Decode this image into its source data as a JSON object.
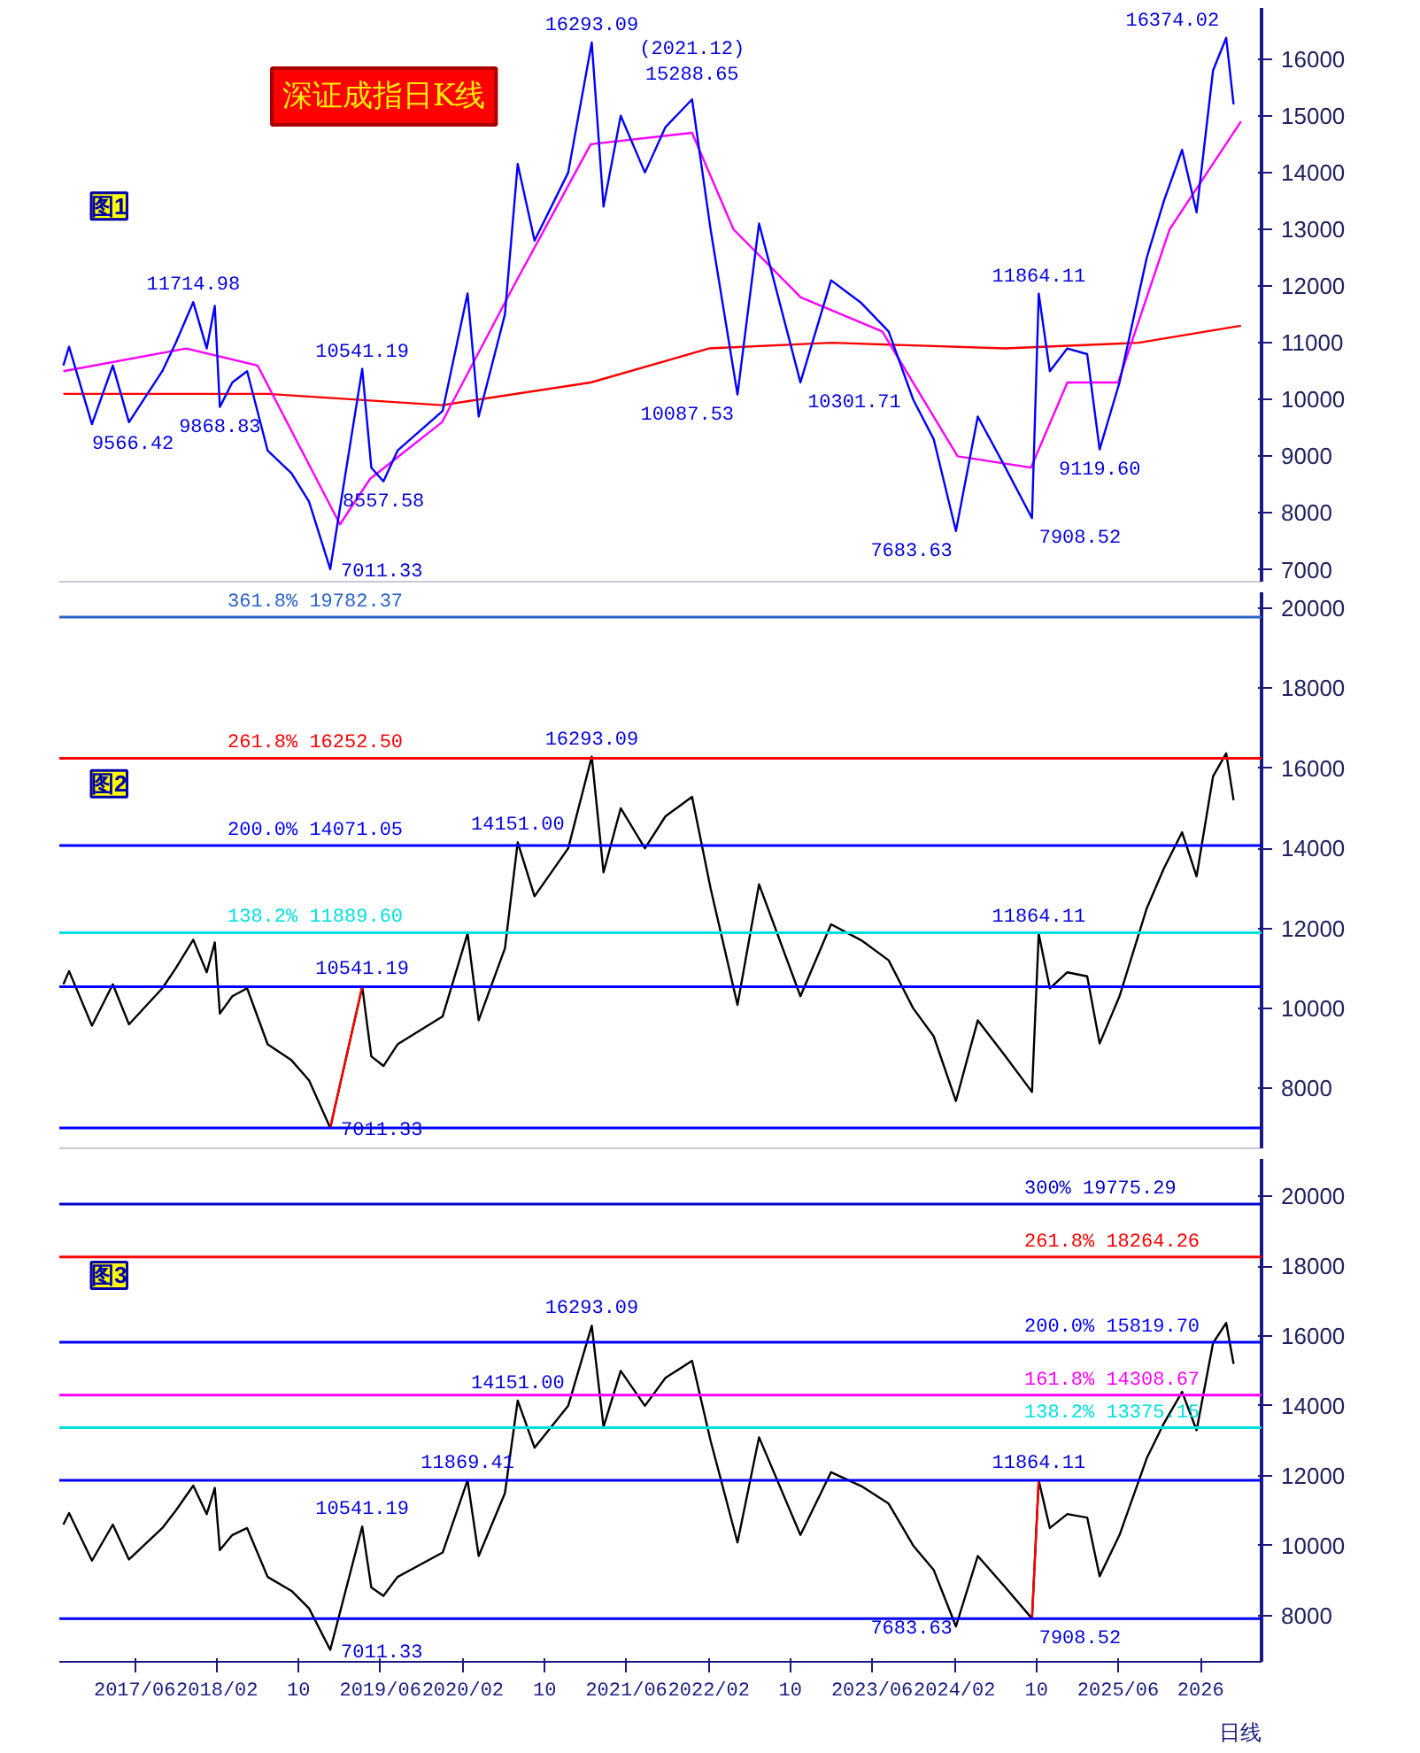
{
  "chart_data": [
    {
      "type": "line",
      "title": "深证成指日K线",
      "subtitle": "图1",
      "xlim": [
        "2016-10-20",
        "2026-08-01"
      ],
      "ylim": [
        6790,
        16900
      ],
      "yticks": [
        7000,
        8000,
        9000,
        10000,
        11000,
        12000,
        13000,
        14000,
        15000,
        16000
      ],
      "tick_labels": "y",
      "grid": false,
      "series": [
        {
          "color": "#ff0000",
          "x": [
            "2016-11-01",
            "2018-07-01",
            "2019-12-01",
            "2021-02-15",
            "2022-02-01",
            "2023-02-01",
            "2024-07-01",
            "2025-08-01",
            "2026-06-01"
          ],
          "values": [
            10100,
            10100,
            9900,
            10300,
            10900,
            11000,
            10900,
            11000,
            11300
          ]
        },
        {
          "color": "#ff00ff",
          "x": [
            "2016-11-01",
            "2017-11-01",
            "2018-06-01",
            "2019-02-01",
            "2019-05-01",
            "2019-12-01",
            "2020-07-01",
            "2021-02-15",
            "2021-12-13",
            "2022-04-15",
            "2022-11-01",
            "2023-07-01",
            "2024-02-10",
            "2024-09-15",
            "2025-01-01",
            "2025-06-01",
            "2025-11-01",
            "2026-06-01"
          ],
          "values": [
            10500,
            10900,
            10600,
            7800,
            8600,
            9600,
            12000,
            14500,
            14700,
            13000,
            11800,
            11200,
            9000,
            8800,
            10300,
            10300,
            13000,
            14900
          ]
        },
        {
          "color": "#0000ff",
          "x": [
            "2016-11-01",
            "2016-11-18",
            "2017-01-25",
            "2017-03-28",
            "2017-05-15",
            "2017-08-22",
            "2017-10-01",
            "2017-11-22",
            "2018-01-01",
            "2018-01-25",
            "2018-02-09",
            "2018-03-18",
            "2018-05-01",
            "2018-07-01",
            "2018-09-10",
            "2018-11-01",
            "2019-01-03",
            "2019-04-08",
            "2019-05-05",
            "2019-06-10",
            "2019-07-22",
            "2019-12-03",
            "2020-02-15",
            "2020-03-19",
            "2020-06-05",
            "2020-07-13",
            "2020-09-01",
            "2020-12-10",
            "2021-02-18",
            "2021-03-25",
            "2021-05-15",
            "2021-07-26",
            "2021-09-25",
            "2021-12-13",
            "2022-02-06",
            "2022-04-27",
            "2022-06-30",
            "2022-10-31",
            "2023-01-30",
            "2023-04-30",
            "2023-07-20",
            "2023-10-01",
            "2023-12-01",
            "2024-02-05",
            "2024-04-10",
            "2024-07-01",
            "2024-09-18",
            "2024-10-08",
            "2024-11-10",
            "2025-01-01",
            "2025-03-01",
            "2025-04-07",
            "2025-06-05",
            "2025-08-25",
            "2025-10-15",
            "2025-12-08",
            "2026-01-20",
            "2026-03-10",
            "2026-04-18",
            "2026-05-10"
          ],
          "values": [
            10600,
            10930,
            9566.42,
            10600,
            9600,
            10500,
            11000,
            11714.98,
            10900,
            11650,
            9868.83,
            10300,
            10500,
            9100,
            8700,
            8200,
            7011.33,
            10541.19,
            8800,
            8557.58,
            9100,
            9800,
            11869.41,
            9700,
            11500,
            14151.0,
            12800,
            14000,
            16293.09,
            13400,
            15000,
            14000,
            14800,
            15288.65,
            13000,
            10087.53,
            13100,
            10301.71,
            12100,
            11700,
            11200,
            10000,
            9300,
            7683.63,
            9700,
            8800,
            7908.52,
            11864.11,
            10500,
            10900,
            10800,
            9119.6,
            10300,
            12500,
            13500,
            14400,
            13300,
            15800,
            16374.02,
            15200
          ]
        }
      ],
      "annotations": [
        {
          "text": "9566.42",
          "x": "2017-01-25",
          "y": 9566.42
        },
        {
          "text": "11714.98",
          "x": "2017-11-22",
          "y": 11714.98
        },
        {
          "text": "9868.83",
          "x": "2018-02-09",
          "y": 9868.83
        },
        {
          "text": "7011.33",
          "x": "2019-01-03",
          "y": 7011.33
        },
        {
          "text": "10541.19",
          "x": "2019-04-08",
          "y": 10541.19
        },
        {
          "text": "8557.58",
          "x": "2019-06-10",
          "y": 8557.58
        },
        {
          "text": "16293.09",
          "x": "2021-02-18",
          "y": 16293.09
        },
        {
          "text": "(2021.12)\n15288.65",
          "x": "2021-12-13",
          "y": 15288.65
        },
        {
          "text": "10087.53",
          "x": "2022-04-27",
          "y": 10087.53
        },
        {
          "text": "10301.71",
          "x": "2022-10-31",
          "y": 10301.71
        },
        {
          "text": "7683.63",
          "x": "2024-02-05",
          "y": 7683.63
        },
        {
          "text": "7908.52",
          "x": "2024-09-18",
          "y": 7908.52
        },
        {
          "text": "11864.11",
          "x": "2024-10-08",
          "y": 11864.11
        },
        {
          "text": "9119.60",
          "x": "2025-04-07",
          "y": 9119.6
        },
        {
          "text": "16374.02",
          "x": "2026-04-18",
          "y": 16374.02
        }
      ]
    },
    {
      "type": "line",
      "subtitle": "图2",
      "xlim": [
        "2016-10-20",
        "2026-08-01"
      ],
      "ylim": [
        6500,
        20400
      ],
      "yticks": [
        8000,
        10000,
        12000,
        14000,
        16000,
        18000,
        20000
      ],
      "tick_labels": "y",
      "grid": false,
      "series": [
        {
          "color": "#000000",
          "x": [
            "2016-11-01",
            "2016-11-18",
            "2017-01-25",
            "2017-03-28",
            "2017-05-15",
            "2017-08-22",
            "2017-10-01",
            "2017-11-22",
            "2018-01-01",
            "2018-01-25",
            "2018-02-09",
            "2018-03-18",
            "2018-05-01",
            "2018-07-01",
            "2018-09-10",
            "2018-11-01",
            "2019-01-03",
            "2019-04-08",
            "2019-05-05",
            "2019-06-10",
            "2019-07-22",
            "2019-12-03",
            "2020-02-15",
            "2020-03-19",
            "2020-06-05",
            "2020-07-13",
            "2020-09-01",
            "2020-12-10",
            "2021-02-18",
            "2021-03-25",
            "2021-05-15",
            "2021-07-26",
            "2021-09-25",
            "2021-12-13",
            "2022-02-06",
            "2022-04-27",
            "2022-06-30",
            "2022-10-31",
            "2023-01-30",
            "2023-04-30",
            "2023-07-20",
            "2023-10-01",
            "2023-12-01",
            "2024-02-05",
            "2024-04-10",
            "2024-07-01",
            "2024-09-18",
            "2024-10-08",
            "2024-11-10",
            "2025-01-01",
            "2025-03-01",
            "2025-04-07",
            "2025-06-05",
            "2025-08-25",
            "2025-10-15",
            "2025-12-08",
            "2026-01-20",
            "2026-03-10",
            "2026-04-18",
            "2026-05-10"
          ],
          "values": [
            10600,
            10930,
            9566.42,
            10600,
            9600,
            10500,
            11000,
            11714.98,
            10900,
            11650,
            9868.83,
            10300,
            10500,
            9100,
            8700,
            8200,
            7011.33,
            10541.19,
            8800,
            8557.58,
            9100,
            9800,
            11869.41,
            9700,
            11500,
            14151.0,
            12800,
            14000,
            16293.09,
            13400,
            15000,
            14000,
            14800,
            15288.65,
            13000,
            10087.53,
            13100,
            10301.71,
            12100,
            11700,
            11200,
            10000,
            9300,
            7683.63,
            9700,
            8800,
            7908.52,
            11864.11,
            10500,
            10900,
            10800,
            9119.6,
            10300,
            12500,
            13500,
            14400,
            13300,
            15800,
            16374.02,
            15200
          ]
        },
        {
          "color": "#ff0000",
          "x": [
            "2019-01-03",
            "2019-04-08"
          ],
          "values": [
            7011.33,
            10541.19
          ]
        }
      ],
      "ref_lines": [
        {
          "axis": "y",
          "value": 19782.37,
          "label": "361.8%  19782.37",
          "color": "#2a62c8"
        },
        {
          "axis": "y",
          "value": 16252.5,
          "label": "261.8%  16252.50",
          "color": "#ff0000"
        },
        {
          "axis": "y",
          "value": 14071.05,
          "label": "200.0%  14071.05",
          "color": "#0000ff"
        },
        {
          "axis": "y",
          "value": 11889.6,
          "label": "138.2%  11889.60",
          "color": "#00e0e0"
        },
        {
          "axis": "y",
          "value": 10541.19,
          "color": "#0000ff"
        },
        {
          "axis": "y",
          "value": 7011.33,
          "color": "#0000ff"
        }
      ],
      "annotations": [
        {
          "text": "7011.33",
          "x": "2019-01-03",
          "y": 7011.33
        },
        {
          "text": "10541.19",
          "x": "2019-04-08",
          "y": 10541.19
        },
        {
          "text": "14151.00",
          "x": "2020-07-13",
          "y": 14151.0
        },
        {
          "text": "16293.09",
          "x": "2021-02-18",
          "y": 16293.09
        },
        {
          "text": "11864.11",
          "x": "2024-10-08",
          "y": 11864.11
        }
      ]
    },
    {
      "type": "line",
      "subtitle": "图3",
      "xlim": [
        "2016-10-20",
        "2026-08-01"
      ],
      "ylim": [
        6670,
        21070
      ],
      "yticks": [
        8000,
        10000,
        12000,
        14000,
        16000,
        18000,
        20000
      ],
      "grid": false,
      "xticks": [
        {
          "value": "2017-06",
          "label": "2017/06"
        },
        {
          "value": "2018-02",
          "label": "2018/02"
        },
        {
          "value": "2018-10",
          "label": "10"
        },
        {
          "value": "2019-06",
          "label": "2019/06"
        },
        {
          "value": "2020-02",
          "label": "2020/02"
        },
        {
          "value": "2020-10",
          "label": "10"
        },
        {
          "value": "2021-06",
          "label": "2021/06"
        },
        {
          "value": "2022-02",
          "label": "2022/02"
        },
        {
          "value": "2022-10",
          "label": "10"
        },
        {
          "value": "2023-06",
          "label": "2023/06"
        },
        {
          "value": "2024-02",
          "label": "2024/02"
        },
        {
          "value": "2024-10",
          "label": "10"
        },
        {
          "value": "2025-06",
          "label": "2025/06"
        },
        {
          "value": "2026-02",
          "label": "2026"
        }
      ],
      "series": [
        {
          "color": "#000000",
          "x": [
            "2016-11-01",
            "2016-11-18",
            "2017-01-25",
            "2017-03-28",
            "2017-05-15",
            "2017-08-22",
            "2017-10-01",
            "2017-11-22",
            "2018-01-01",
            "2018-01-25",
            "2018-02-09",
            "2018-03-18",
            "2018-05-01",
            "2018-07-01",
            "2018-09-10",
            "2018-11-01",
            "2019-01-03",
            "2019-04-08",
            "2019-05-05",
            "2019-06-10",
            "2019-07-22",
            "2019-12-03",
            "2020-02-15",
            "2020-03-19",
            "2020-06-05",
            "2020-07-13",
            "2020-09-01",
            "2020-12-10",
            "2021-02-18",
            "2021-03-25",
            "2021-05-15",
            "2021-07-26",
            "2021-09-25",
            "2021-12-13",
            "2022-02-06",
            "2022-04-27",
            "2022-06-30",
            "2022-10-31",
            "2023-01-30",
            "2023-04-30",
            "2023-07-20",
            "2023-10-01",
            "2023-12-01",
            "2024-02-05",
            "2024-04-10",
            "2024-07-01",
            "2024-09-18",
            "2024-10-08",
            "2024-11-10",
            "2025-01-01",
            "2025-03-01",
            "2025-04-07",
            "2025-06-05",
            "2025-08-25",
            "2025-10-15",
            "2025-12-08",
            "2026-01-20",
            "2026-03-10",
            "2026-04-18",
            "2026-05-10"
          ],
          "values": [
            10600,
            10930,
            9566.42,
            10600,
            9600,
            10500,
            11000,
            11714.98,
            10900,
            11650,
            9868.83,
            10300,
            10500,
            9100,
            8700,
            8200,
            7011.33,
            10541.19,
            8800,
            8557.58,
            9100,
            9800,
            11869.41,
            9700,
            11500,
            14151.0,
            12800,
            14000,
            16293.09,
            13400,
            15000,
            14000,
            14800,
            15288.65,
            13000,
            10087.53,
            13100,
            10301.71,
            12100,
            11700,
            11200,
            10000,
            9300,
            7683.63,
            9700,
            8800,
            7908.52,
            11864.11,
            10500,
            10900,
            10800,
            9119.6,
            10300,
            12500,
            13500,
            14400,
            13300,
            15800,
            16374.02,
            15200
          ]
        },
        {
          "color": "#ff0000",
          "x": [
            "2024-09-18",
            "2024-10-08"
          ],
          "values": [
            7908.52,
            11864.11
          ]
        }
      ],
      "ref_lines": [
        {
          "axis": "y",
          "value": 19775.29,
          "label": "300%  19775.29",
          "color": "#0000cc"
        },
        {
          "axis": "y",
          "value": 18264.26,
          "label": "261.8%  18264.26",
          "color": "#ff0000"
        },
        {
          "axis": "y",
          "value": 15819.7,
          "label": "200.0%  15819.70",
          "color": "#0000ff"
        },
        {
          "axis": "y",
          "value": 14308.67,
          "label": "161.8%  14308.67",
          "color": "#ff00ff"
        },
        {
          "axis": "y",
          "value": 13375.15,
          "label": "138.2%  13375.15",
          "color": "#00e0e0"
        },
        {
          "axis": "y",
          "value": 11864.11,
          "color": "#0000ff"
        },
        {
          "axis": "y",
          "value": 7908.52,
          "color": "#0000ff"
        }
      ],
      "annotations": [
        {
          "text": "7011.33",
          "x": "2019-01-03",
          "y": 7011.33
        },
        {
          "text": "10541.19",
          "x": "2019-04-08",
          "y": 10541.19
        },
        {
          "text": "11869.41",
          "x": "2020-02-15",
          "y": 11869.41
        },
        {
          "text": "14151.00",
          "x": "2020-07-13",
          "y": 14151.0
        },
        {
          "text": "16293.09",
          "x": "2021-02-18",
          "y": 16293.09
        },
        {
          "text": "7683.63",
          "x": "2024-02-05",
          "y": 7683.63
        },
        {
          "text": "7908.52",
          "x": "2024-09-18",
          "y": 7908.52
        },
        {
          "text": "11864.11",
          "x": "2024-10-08",
          "y": 11864.11
        },
        "日线"
      ]
    }
  ]
}
